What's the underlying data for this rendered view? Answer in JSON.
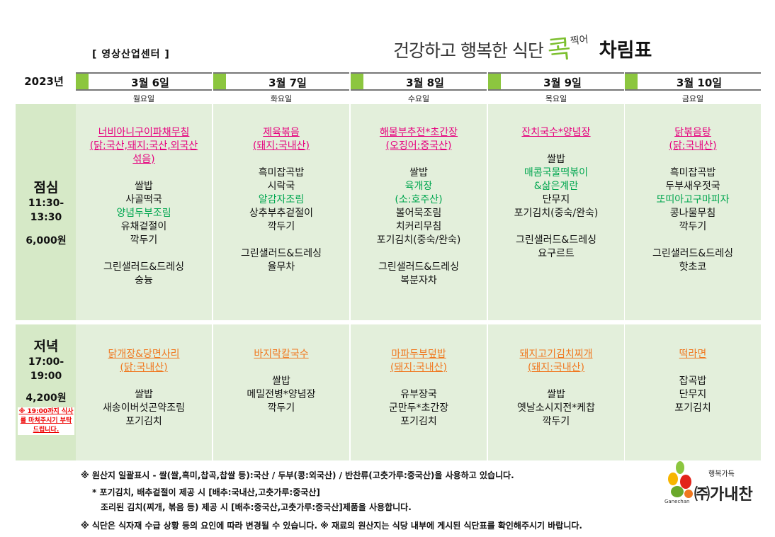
{
  "header": {
    "title_sub": "건강하고 행복한 식단",
    "title_logo": "콕",
    "title_logo_small": "찍어",
    "title_main": "차림표",
    "center_name": "[ 영상산업센터 ]"
  },
  "year": "2023년",
  "days": [
    {
      "date": "3월 6일",
      "weekday": "월요일"
    },
    {
      "date": "3월 7일",
      "weekday": "화요일"
    },
    {
      "date": "3월 8일",
      "weekday": "수요일"
    },
    {
      "date": "3월 9일",
      "weekday": "목요일"
    },
    {
      "date": "3월 10일",
      "weekday": "금요일"
    }
  ],
  "lunch": {
    "label": "점심",
    "time_start": "11:30-",
    "time_end": "13:30",
    "price": "6,000원",
    "menus": [
      [
        "너비아니구이파채무침",
        "(닭:국산,돼지:국산,외국산",
        "섞음)",
        "",
        "쌀밥",
        "사골떡국",
        "양념두부조림",
        "유채겉절이",
        "깍두기",
        "",
        "그린샐러드&드레싱",
        "숭늉"
      ],
      [
        "제육볶음",
        "(돼지:국내산)",
        "",
        "흑미잡곡밥",
        "시락국",
        "알감자조림",
        "상추부추겉절이",
        "깍두기",
        "",
        "그린샐러드&드레싱",
        "율무차"
      ],
      [
        "해물부추전*초간장",
        "(오징어:중국산)",
        "",
        "쌀밥",
        "육개장",
        "(소:호주산)",
        "볼어묵조림",
        "치커리무침",
        "포기김치(중숙/완숙)",
        "",
        "그린샐러드&드레싱",
        "복분자차"
      ],
      [
        "잔치국수*양념장",
        "",
        "쌀밥",
        "매콤국물떡볶이",
        "&삶은계란",
        "단무지",
        "포기김치(중숙/완숙)",
        "",
        "그린샐러드&드레싱",
        "요구르트"
      ],
      [
        "닭볶음탕",
        "(닭:국내산)",
        "",
        "흑미잡곡밥",
        "두부새우젓국",
        "또띠아고구마피자",
        "콩나물무침",
        "깍두기",
        "",
        "그린샐러드&드레싱",
        "핫초코"
      ]
    ],
    "styles": [
      [
        "pink",
        "pink",
        "pink",
        "",
        "",
        "",
        "green",
        "",
        "",
        "",
        "",
        ""
      ],
      [
        "pink",
        "pink",
        "",
        "",
        "",
        "green",
        "",
        "",
        "",
        "",
        ""
      ],
      [
        "pink",
        "pink",
        "",
        "",
        "green",
        "green",
        "",
        "",
        "",
        "",
        "",
        ""
      ],
      [
        "pink",
        "",
        "",
        "green",
        "green",
        "",
        "",
        "",
        "",
        ""
      ],
      [
        "pink",
        "pink",
        "",
        "",
        "",
        "green",
        "",
        "",
        "",
        "",
        ""
      ]
    ]
  },
  "dinner": {
    "label": "저녁",
    "time_start": "17:00-",
    "time_end": "19:00",
    "price": "4,200원",
    "notice": "※ 19:00까지 식사를 마쳐주시기 부탁드립니다.",
    "menus": [
      [
        "닭개장&당면사리",
        "(닭:국내산)",
        "",
        "쌀밥",
        "새송이버섯곤약조림",
        "포기김치"
      ],
      [
        "바지락칼국수",
        "",
        "쌀밥",
        "메밀전병*양념장",
        "깍두기"
      ],
      [
        "마파두부덮밥",
        "(돼지:국내산)",
        "",
        "유부장국",
        "군만두*초간장",
        "포기김치"
      ],
      [
        "돼지고기김치찌개",
        "(돼지:국내산)",
        "",
        "쌀밥",
        "옛날소시지전*케찹",
        "깍두기"
      ],
      [
        "떡라면",
        "",
        "잡곡밥",
        "단무지",
        "포기김치"
      ]
    ],
    "styles": [
      [
        "orange",
        "orange",
        "",
        "",
        "",
        ""
      ],
      [
        "orange",
        "",
        "",
        "",
        ""
      ],
      [
        "orange",
        "orange",
        "",
        "",
        "",
        ""
      ],
      [
        "orange",
        "orange",
        "",
        "",
        "",
        ""
      ],
      [
        "orange",
        "",
        "",
        "",
        ""
      ]
    ]
  },
  "footer": {
    "line1": "※ 원산지 일괄표시 - 쌀(쌀,흑미,찹곡,찹쌀 등):국산 / 두부(콩:외국산) / 반찬류(고춧가루:중국산)을 사용하고 있습니다.",
    "line2": "* 포기김치, 배추겉절이 제공 시 [배추:국내산,고춧가루:중국산]",
    "line3": "조리된 김치(찌개, 볶음 등) 제공 시  [배추:중국산,고춧가루:중국산]제품을 사용합니다.",
    "line4": "※ 식단은 식자재 수급 상황 등의 요인에 따라 변경될 수 있습니다. ※ 재료의 원산지는 식당 내부에 게시된 식단표를 확인해주시기 바랍니다."
  },
  "brand": {
    "name": "㈜가내찬",
    "slogan": "행복가득",
    "english": "Ganechan"
  },
  "colors": {
    "accent_green": "#8cc63f",
    "panel_bg": "#e3efdb",
    "lunch_title": "#e6007e",
    "dinner_title": "#f07820",
    "highlight": "#00a64f",
    "notice_red": "#e00000"
  }
}
